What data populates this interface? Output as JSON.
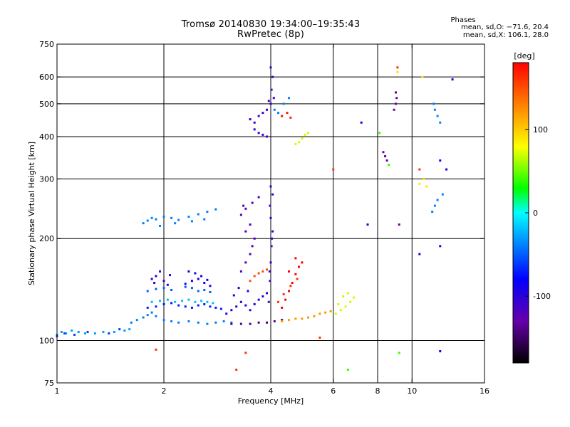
{
  "header": {
    "title_line1": "Tromsø 20140830 19:34:00–19:35:43",
    "title_line2": "RwPretec (8p)"
  },
  "phases": {
    "label": "Phases",
    "line1": "mean, sd,O: −71.6, 20.4",
    "line2": "mean, sd,X: 106.1, 28.0"
  },
  "chart_data": {
    "type": "scatter",
    "title": "Tromsø 20140830 19:34:00–19:35:43",
    "subtitle": "RwPretec (8p)",
    "xlabel": "Frequency [MHz]",
    "ylabel": "Stationary phase Virtual Height [km]",
    "x_scale": "log",
    "y_scale": "log",
    "xlim": [
      1,
      16
    ],
    "ylim": [
      75,
      750
    ],
    "x_ticks": [
      1,
      2,
      4,
      6,
      8,
      10,
      16
    ],
    "y_ticks": [
      75,
      100,
      200,
      300,
      400,
      500,
      600,
      750
    ],
    "x_gridlines": [
      2,
      4,
      6,
      8,
      10
    ],
    "y_gridlines": [
      100,
      200,
      300,
      400,
      500,
      600
    ],
    "grid": true,
    "colorbar": {
      "label": "[deg]",
      "range": [
        -180,
        180
      ],
      "ticks": [
        100,
        0,
        -100
      ]
    },
    "series": [
      {
        "color_value": -30,
        "points": [
          [
            1.0,
            104
          ],
          [
            1.03,
            106
          ],
          [
            1.06,
            105
          ],
          [
            1.1,
            107
          ],
          [
            1.15,
            106
          ],
          [
            1.2,
            105
          ],
          [
            1.28,
            105
          ],
          [
            1.35,
            106
          ],
          [
            1.45,
            106
          ],
          [
            1.55,
            107
          ],
          [
            1.6,
            108
          ]
        ]
      },
      {
        "color_value": -60,
        "points": [
          [
            1.0,
            103
          ],
          [
            1.05,
            105
          ],
          [
            1.12,
            104
          ],
          [
            1.22,
            106
          ],
          [
            1.4,
            105
          ],
          [
            1.5,
            108
          ]
        ]
      },
      {
        "color_value": -40,
        "points": [
          [
            1.62,
            113
          ],
          [
            1.68,
            115
          ],
          [
            1.75,
            117
          ],
          [
            1.8,
            119
          ],
          [
            1.85,
            121
          ],
          [
            1.9,
            118
          ],
          [
            2.0,
            115
          ],
          [
            2.1,
            114
          ],
          [
            2.2,
            113
          ],
          [
            2.35,
            114
          ],
          [
            2.5,
            113
          ],
          [
            2.65,
            112
          ],
          [
            2.8,
            113
          ],
          [
            2.95,
            114
          ],
          [
            3.1,
            113
          ]
        ]
      },
      {
        "color_value": -70,
        "points": [
          [
            1.8,
            125
          ],
          [
            1.9,
            126
          ],
          [
            2.0,
            128
          ],
          [
            2.1,
            129
          ],
          [
            2.2,
            127
          ],
          [
            2.3,
            126
          ],
          [
            2.4,
            125
          ],
          [
            2.5,
            127
          ],
          [
            2.6,
            128
          ],
          [
            2.7,
            126
          ],
          [
            2.8,
            125
          ],
          [
            2.9,
            124
          ]
        ]
      },
      {
        "color_value": -20,
        "points": [
          [
            1.85,
            130
          ],
          [
            1.95,
            131
          ],
          [
            2.05,
            132
          ],
          [
            2.15,
            130
          ],
          [
            2.25,
            131
          ],
          [
            2.35,
            132
          ],
          [
            2.45,
            130
          ],
          [
            2.55,
            131
          ],
          [
            2.65,
            130
          ],
          [
            2.75,
            129
          ]
        ]
      },
      {
        "color_value": -50,
        "points": [
          [
            1.8,
            140
          ],
          [
            1.9,
            142
          ],
          [
            2.0,
            143
          ],
          [
            2.1,
            141
          ],
          [
            2.3,
            144
          ],
          [
            2.4,
            143
          ],
          [
            2.5,
            140
          ],
          [
            2.6,
            141
          ],
          [
            2.7,
            139
          ]
        ]
      },
      {
        "color_value": -110,
        "points": [
          [
            1.85,
            152
          ],
          [
            1.9,
            155
          ],
          [
            1.95,
            160
          ],
          [
            2.0,
            150
          ],
          [
            2.05,
            146
          ],
          [
            1.88,
            148
          ],
          [
            2.08,
            156
          ]
        ]
      },
      {
        "color_value": -90,
        "points": [
          [
            2.3,
            147
          ],
          [
            2.4,
            150
          ],
          [
            2.5,
            152
          ],
          [
            2.6,
            148
          ],
          [
            2.7,
            145
          ],
          [
            2.45,
            158
          ],
          [
            2.55,
            155
          ],
          [
            2.65,
            151
          ],
          [
            2.35,
            160
          ]
        ]
      },
      {
        "color_value": -40,
        "points": [
          [
            1.75,
            222
          ],
          [
            1.8,
            226
          ],
          [
            1.85,
            230
          ],
          [
            1.9,
            228
          ],
          [
            2.0,
            232
          ],
          [
            2.1,
            230
          ],
          [
            2.2,
            227
          ],
          [
            2.35,
            232
          ],
          [
            2.5,
            236
          ],
          [
            2.65,
            240
          ],
          [
            2.8,
            244
          ],
          [
            1.95,
            218
          ],
          [
            2.15,
            222
          ],
          [
            2.4,
            225
          ],
          [
            2.6,
            228
          ]
        ]
      },
      {
        "color_value": -140,
        "points": [
          [
            3.1,
            112
          ],
          [
            3.3,
            112
          ],
          [
            3.5,
            112
          ],
          [
            3.7,
            113
          ],
          [
            3.9,
            113
          ],
          [
            4.1,
            114
          ],
          [
            4.3,
            115
          ]
        ]
      },
      {
        "color_value": -100,
        "points": [
          [
            3.0,
            120
          ],
          [
            3.1,
            123
          ],
          [
            3.2,
            126
          ],
          [
            3.3,
            130
          ],
          [
            3.4,
            127
          ],
          [
            3.5,
            123
          ],
          [
            3.6,
            128
          ],
          [
            3.7,
            132
          ],
          [
            3.8,
            135
          ],
          [
            3.9,
            138
          ],
          [
            3.45,
            140
          ],
          [
            3.25,
            143
          ],
          [
            3.15,
            136
          ]
        ]
      },
      {
        "color_value": -120,
        "points": [
          [
            3.3,
            160
          ],
          [
            3.4,
            170
          ],
          [
            3.5,
            180
          ],
          [
            3.55,
            190
          ],
          [
            3.6,
            200
          ],
          [
            3.4,
            210
          ],
          [
            3.5,
            220
          ],
          [
            3.3,
            235
          ],
          [
            3.4,
            245
          ],
          [
            3.55,
            255
          ],
          [
            3.7,
            265
          ],
          [
            3.35,
            250
          ]
        ]
      },
      {
        "color_value": -110,
        "points": [
          [
            3.95,
            130
          ],
          [
            3.98,
            150
          ],
          [
            4.0,
            170
          ],
          [
            4.02,
            190
          ],
          [
            4.05,
            210
          ],
          [
            4.0,
            230
          ],
          [
            3.98,
            250
          ],
          [
            4.05,
            270
          ],
          [
            4.0,
            285
          ],
          [
            3.97,
            160
          ],
          [
            4.03,
            200
          ]
        ]
      },
      {
        "color_value": 150,
        "points": [
          [
            3.5,
            150
          ],
          [
            3.6,
            155
          ],
          [
            3.7,
            158
          ],
          [
            3.8,
            160
          ],
          [
            3.9,
            162
          ]
        ]
      },
      {
        "color_value": 180,
        "points": [
          [
            4.3,
            125
          ],
          [
            4.4,
            132
          ],
          [
            4.5,
            140
          ],
          [
            4.6,
            148
          ],
          [
            4.7,
            157
          ],
          [
            4.8,
            165
          ],
          [
            4.9,
            170
          ],
          [
            4.5,
            160
          ],
          [
            4.7,
            175
          ]
        ]
      },
      {
        "color_value": 160,
        "points": [
          [
            4.2,
            130
          ],
          [
            4.35,
            137
          ],
          [
            4.55,
            145
          ],
          [
            4.75,
            152
          ]
        ]
      },
      {
        "color_value": 120,
        "points": [
          [
            4.3,
            114
          ],
          [
            4.5,
            115
          ],
          [
            4.7,
            116
          ],
          [
            4.9,
            116
          ],
          [
            5.1,
            117
          ],
          [
            5.3,
            118
          ],
          [
            5.5,
            120
          ],
          [
            5.7,
            121
          ],
          [
            5.9,
            122
          ]
        ]
      },
      {
        "color_value": 70,
        "points": [
          [
            6.1,
            120
          ],
          [
            6.3,
            123
          ],
          [
            6.5,
            126
          ],
          [
            6.7,
            130
          ],
          [
            6.85,
            134
          ],
          [
            6.6,
            138
          ],
          [
            6.4,
            135
          ],
          [
            6.2,
            128
          ]
        ]
      },
      {
        "color_value": -110,
        "points": [
          [
            3.5,
            450
          ],
          [
            3.6,
            440
          ],
          [
            3.7,
            460
          ],
          [
            3.8,
            470
          ],
          [
            3.9,
            480
          ],
          [
            3.6,
            420
          ],
          [
            3.7,
            410
          ],
          [
            3.8,
            405
          ],
          [
            3.9,
            400
          ],
          [
            4.0,
            500
          ],
          [
            4.02,
            550
          ],
          [
            4.05,
            600
          ],
          [
            4.0,
            640
          ],
          [
            4.08,
            520
          ],
          [
            3.95,
            510
          ]
        ]
      },
      {
        "color_value": -40,
        "points": [
          [
            4.1,
            480
          ],
          [
            4.2,
            470
          ],
          [
            4.3,
            460
          ],
          [
            4.35,
            500
          ],
          [
            4.5,
            520
          ]
        ]
      },
      {
        "color_value": 170,
        "points": [
          [
            4.3,
            460
          ],
          [
            4.45,
            470
          ],
          [
            4.55,
            455
          ]
        ]
      },
      {
        "color_value": 70,
        "points": [
          [
            4.7,
            380
          ],
          [
            4.8,
            385
          ],
          [
            4.9,
            395
          ],
          [
            5.0,
            405
          ],
          [
            5.1,
            410
          ]
        ]
      },
      {
        "color_value": -130,
        "points": [
          [
            8.3,
            360
          ],
          [
            8.4,
            350
          ],
          [
            8.5,
            340
          ],
          [
            9.0,
            540
          ],
          [
            9.05,
            520
          ],
          [
            9.0,
            500
          ],
          [
            8.9,
            480
          ],
          [
            9.2,
            220
          ]
        ]
      },
      {
        "color_value": -40,
        "points": [
          [
            11.5,
            500
          ],
          [
            11.6,
            480
          ],
          [
            11.8,
            460
          ],
          [
            12.0,
            440
          ],
          [
            12.2,
            270
          ],
          [
            11.8,
            260
          ],
          [
            11.6,
            250
          ],
          [
            11.4,
            240
          ]
        ]
      },
      {
        "color_value": 90,
        "points": [
          [
            10.5,
            290
          ],
          [
            10.8,
            300
          ],
          [
            11.0,
            285
          ],
          [
            10.7,
            600
          ],
          [
            9.1,
            620
          ]
        ]
      },
      {
        "color_value": -90,
        "points": [
          [
            7.2,
            440
          ],
          [
            7.5,
            220
          ],
          [
            12.0,
            340
          ],
          [
            13.0,
            590
          ],
          [
            12.5,
            320
          ],
          [
            12.0,
            190
          ],
          [
            10.5,
            180
          ],
          [
            12.0,
            93
          ]
        ]
      },
      {
        "color_value": 160,
        "points": [
          [
            1.9,
            94
          ],
          [
            3.4,
            92
          ],
          [
            3.2,
            82
          ],
          [
            5.5,
            102
          ],
          [
            6.0,
            320
          ],
          [
            9.1,
            640
          ],
          [
            10.5,
            320
          ]
        ]
      },
      {
        "color_value": 40,
        "points": [
          [
            6.6,
            82
          ],
          [
            8.1,
            410
          ],
          [
            8.6,
            330
          ],
          [
            9.2,
            92
          ]
        ]
      }
    ]
  }
}
